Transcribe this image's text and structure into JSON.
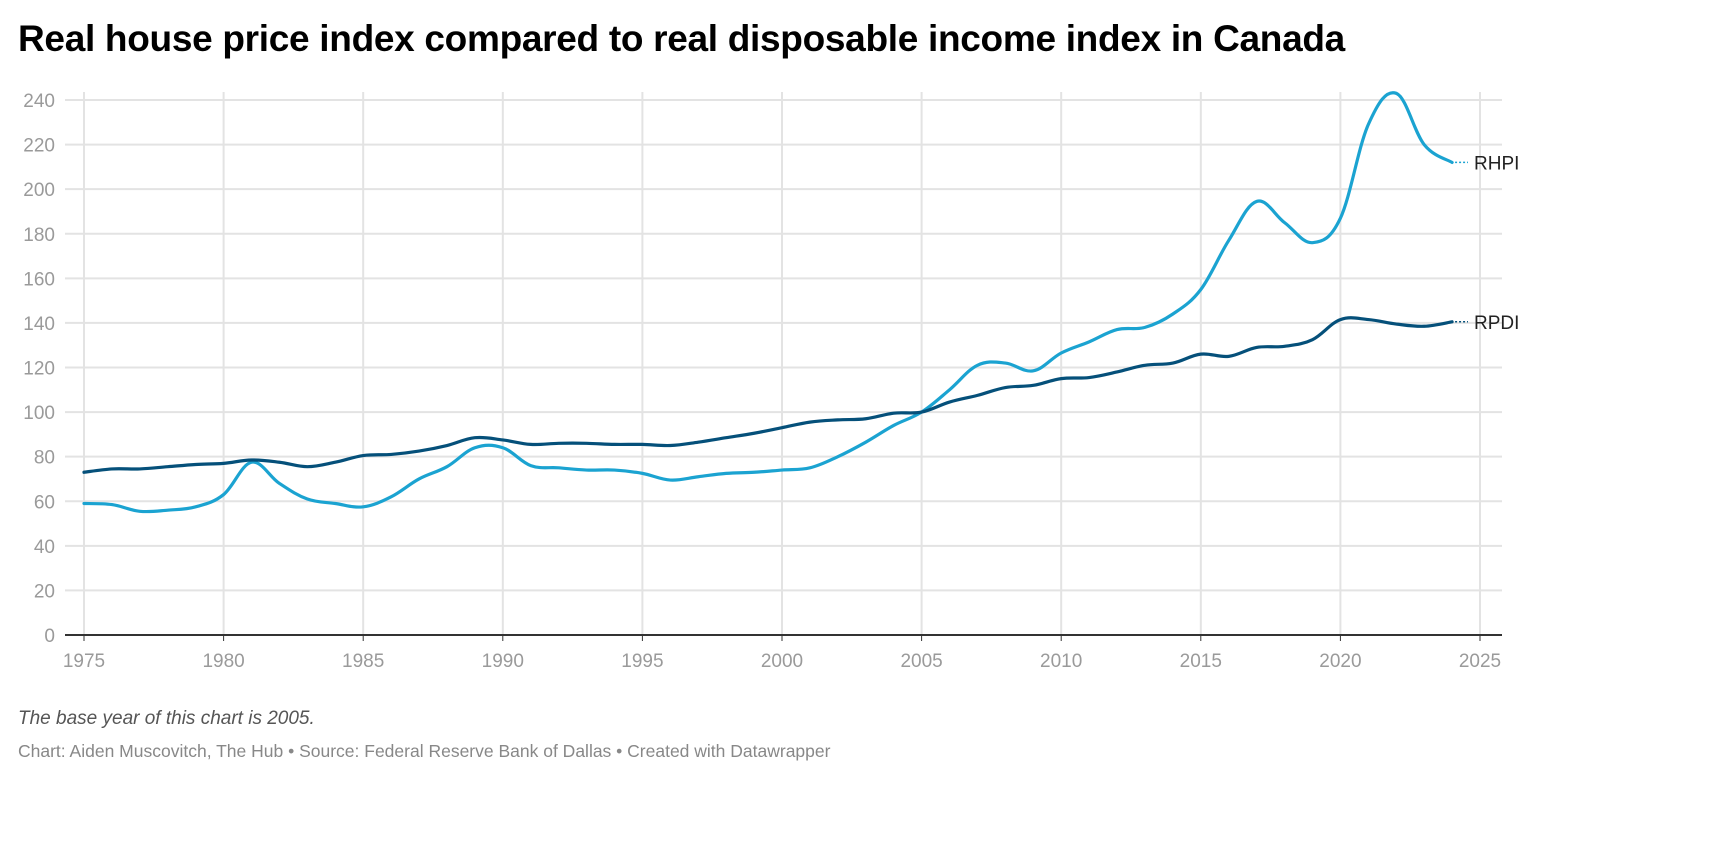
{
  "chart_data": {
    "type": "line",
    "title": "Real house price index compared to real disposable income index in Canada",
    "note": "The base year of this chart is 2005.",
    "credit": "Chart: Aiden Muscovitch, The Hub • Source: Federal Reserve Bank of Dallas • Created with Datawrapper",
    "xlabel": "",
    "ylabel": "",
    "xlim": [
      1975,
      2025
    ],
    "ylim": [
      0,
      240
    ],
    "grid": true,
    "legend": "inline-right",
    "x_ticks": [
      "1975",
      "1980",
      "1985",
      "1990",
      "1995",
      "2000",
      "2005",
      "2010",
      "2015",
      "2020",
      "2025"
    ],
    "y_ticks": [
      "0",
      "20",
      "40",
      "60",
      "80",
      "100",
      "120",
      "140",
      "160",
      "180",
      "200",
      "220",
      "240"
    ],
    "x": [
      1975,
      1976,
      1977,
      1978,
      1979,
      1980,
      1981,
      1982,
      1983,
      1984,
      1985,
      1986,
      1987,
      1988,
      1989,
      1990,
      1991,
      1992,
      1993,
      1994,
      1995,
      1996,
      1997,
      1998,
      1999,
      2000,
      2001,
      2002,
      2003,
      2004,
      2005,
      2006,
      2007,
      2008,
      2009,
      2010,
      2011,
      2012,
      2013,
      2014,
      2015,
      2016,
      2017,
      2018,
      2019,
      2020,
      2021,
      2022,
      2023,
      2024
    ],
    "series": [
      {
        "name": "RHPI",
        "color": "#1ba3d1",
        "values": [
          59,
          58.5,
          55.5,
          56,
          57.5,
          63,
          77.5,
          68,
          61,
          59,
          57.5,
          62,
          70,
          75.5,
          84,
          84,
          76,
          75,
          74,
          74,
          72.5,
          69.5,
          71,
          72.5,
          73,
          74,
          75,
          80,
          86.5,
          94,
          100,
          110,
          121,
          122,
          118.5,
          126.5,
          131.5,
          137,
          138,
          144,
          155,
          177,
          194.5,
          185,
          176,
          187,
          229,
          243,
          220,
          212
        ]
      },
      {
        "name": "RPDI",
        "color": "#05507a",
        "values": [
          73,
          74.5,
          74.5,
          75.5,
          76.5,
          77,
          78.5,
          77.5,
          75.5,
          77.5,
          80.5,
          81,
          82.5,
          85,
          88.5,
          87.5,
          85.5,
          86,
          86,
          85.5,
          85.5,
          85,
          86.5,
          88.5,
          90.5,
          93,
          95.5,
          96.5,
          97,
          99.5,
          100,
          104.5,
          107.5,
          111,
          112,
          115,
          115.5,
          118,
          121,
          122,
          126,
          125,
          129,
          129.5,
          132.5,
          141.5,
          141.5,
          139.5,
          138.5,
          140.5
        ]
      }
    ]
  }
}
